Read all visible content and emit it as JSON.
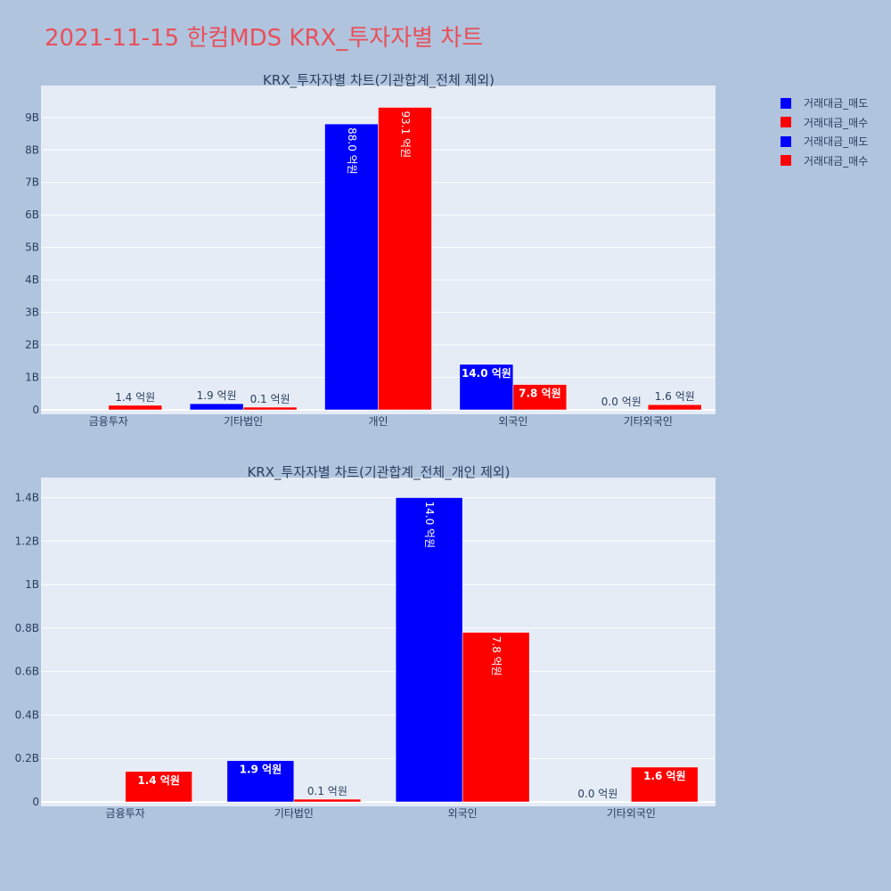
{
  "title": "2021-11-15 한컴MDS KRX_투자자별 차트",
  "colors": {
    "sell": "#0000ff",
    "buy": "#ff0000",
    "background": "#b0c4de",
    "plot_bg": "#e5ecf6",
    "title": "#e8505b"
  },
  "legend": [
    {
      "label": "거래대금_매도",
      "color": "#0000ff"
    },
    {
      "label": "거래대금_매수",
      "color": "#ff0000"
    },
    {
      "label": "거래대금_매도",
      "color": "#0000ff"
    },
    {
      "label": "거래대금_매수",
      "color": "#ff0000"
    }
  ],
  "chart_data": [
    {
      "type": "bar",
      "title": "KRX_투자자별 차트(기관합계_전체 제외)",
      "categories": [
        "금융투자",
        "기타법인",
        "개인",
        "외국인",
        "기타외국인"
      ],
      "series": [
        {
          "name": "거래대금_매도",
          "values": [
            0,
            190000000,
            8800000000,
            1400000000,
            0
          ],
          "labels": [
            "",
            "1.9 억원",
            "88.0 억원",
            "14.0 억원",
            "0.0 억원"
          ],
          "color": "#0000ff"
        },
        {
          "name": "거래대금_매수",
          "values": [
            140000000,
            10000000,
            9310000000,
            780000000,
            160000000
          ],
          "labels": [
            "1.4 억원",
            "0.1 억원",
            "93.1 억원",
            "7.8 억원",
            "1.6 억원"
          ],
          "color": "#ff0000"
        }
      ],
      "ylim": [
        0,
        9900000000
      ],
      "yticks": [
        0,
        1000000000,
        2000000000,
        3000000000,
        4000000000,
        5000000000,
        6000000000,
        7000000000,
        8000000000,
        9000000000
      ],
      "ytick_labels": [
        "0",
        "1B",
        "2B",
        "3B",
        "4B",
        "5B",
        "6B",
        "7B",
        "8B",
        "9B"
      ],
      "grid": true
    },
    {
      "type": "bar",
      "title": "KRX_투자자별 차트(기관합계_전체_개인 제외)",
      "categories": [
        "금융투자",
        "기타법인",
        "외국인",
        "기타외국인"
      ],
      "series": [
        {
          "name": "거래대금_매도",
          "values": [
            0,
            190000000,
            1400000000,
            0
          ],
          "labels": [
            "",
            "1.9 억원",
            "14.0 억원",
            "0.0 억원"
          ],
          "color": "#0000ff"
        },
        {
          "name": "거래대금_매수",
          "values": [
            140000000,
            10000000,
            780000000,
            160000000
          ],
          "labels": [
            "1.4 억원",
            "0.1 억원",
            "7.8 억원",
            "1.6 억원"
          ],
          "color": "#ff0000"
        }
      ],
      "ylim": [
        0,
        1480000000
      ],
      "yticks": [
        0,
        200000000,
        400000000,
        600000000,
        800000000,
        1000000000,
        1200000000,
        1400000000
      ],
      "ytick_labels": [
        "0",
        "0.2B",
        "0.4B",
        "0.6B",
        "0.8B",
        "1B",
        "1.2B",
        "1.4B"
      ],
      "grid": true
    }
  ]
}
